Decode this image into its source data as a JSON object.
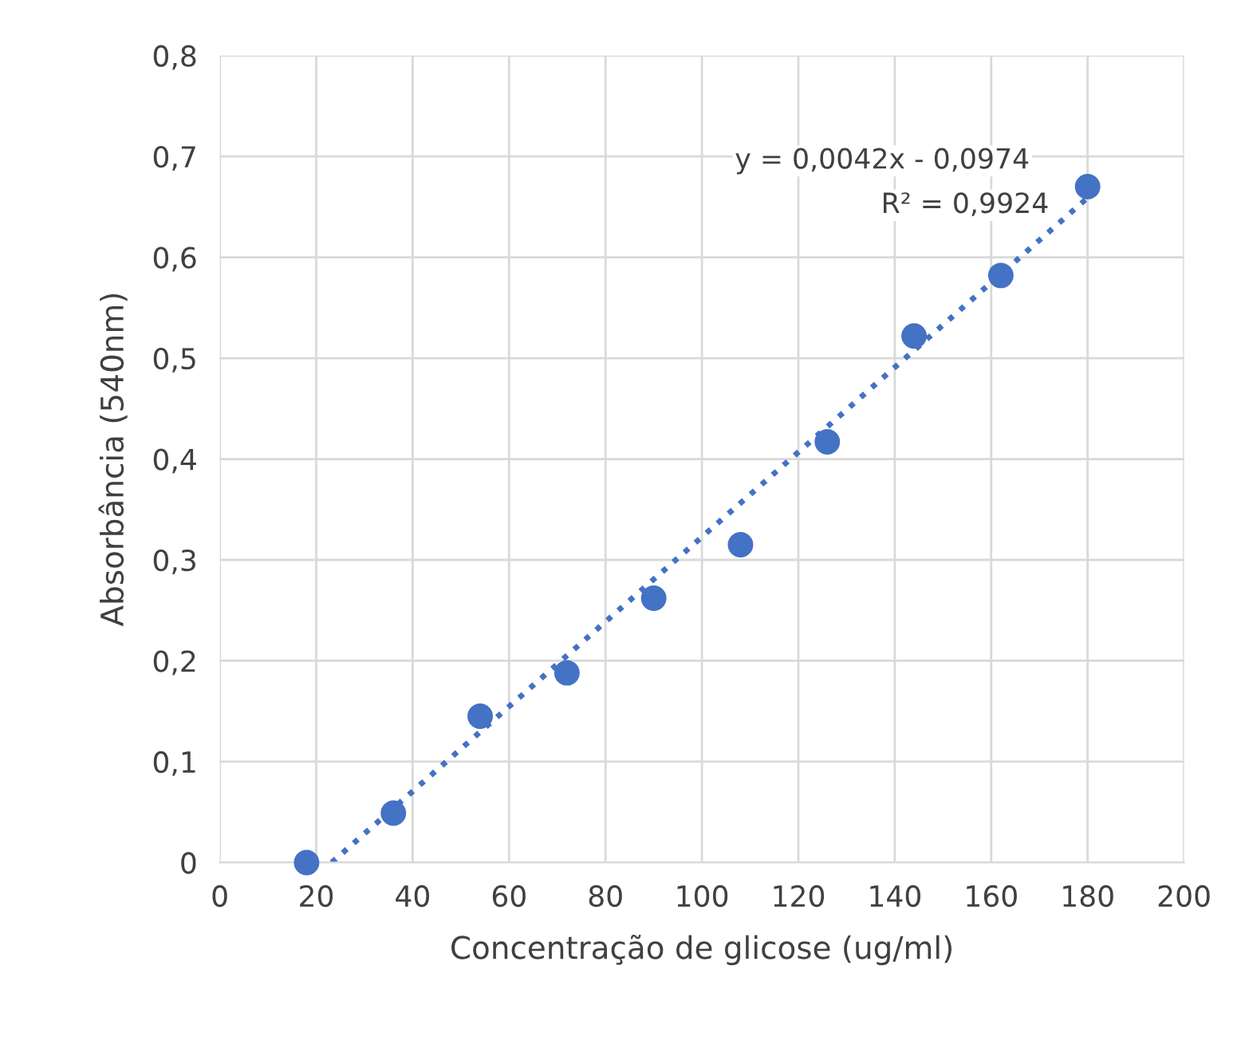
{
  "chart_data": {
    "type": "scatter",
    "xlabel": "Concentração de glicose (ug/ml)",
    "ylabel": "Absorbância (540nm)",
    "series": [
      {
        "color": "#4472c4",
        "marker": "circle",
        "x": [
          18,
          36,
          54,
          72,
          90,
          108,
          126,
          144,
          162,
          180
        ],
        "values": [
          0,
          0.049,
          0.145,
          0.188,
          0.262,
          0.315,
          0.417,
          0.522,
          0.582,
          0.67
        ]
      },
      {
        "type": "line",
        "color": "#4472c4",
        "line_style": "dotted",
        "marker": "none",
        "x": [
          23.2,
          180
        ],
        "values": [
          0,
          0.659
        ]
      }
    ],
    "annotations": [
      "y = 0,0042x - 0,0974",
      "R² = 0,9924"
    ],
    "xlim": [
      0,
      200
    ],
    "xticks": [
      0,
      20,
      40,
      60,
      80,
      100,
      120,
      140,
      160,
      180,
      200
    ],
    "ylim": [
      0,
      0.8
    ],
    "yticks": [
      0,
      {
        "value": 0.1,
        "label": "0,1"
      },
      {
        "value": 0.2,
        "label": "0,2"
      },
      {
        "value": 0.3,
        "label": "0,3"
      },
      {
        "value": 0.4,
        "label": "0,4"
      },
      {
        "value": 0.5,
        "label": "0,5"
      },
      {
        "value": 0.6,
        "label": "0,6"
      },
      {
        "value": 0.7,
        "label": "0,7"
      },
      {
        "value": 0.8,
        "label": "0,8"
      }
    ],
    "grid": true,
    "legend": false
  }
}
